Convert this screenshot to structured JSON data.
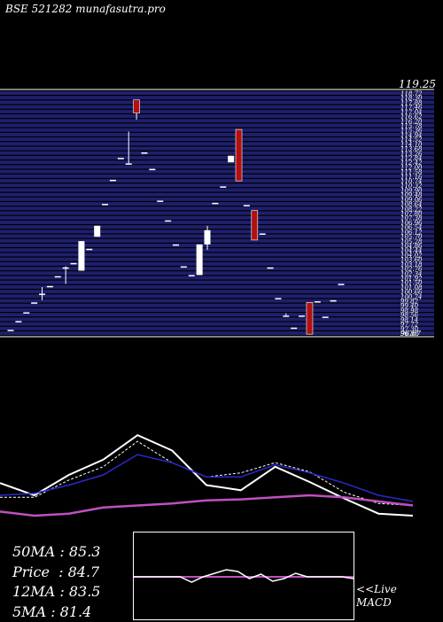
{
  "header": {
    "title": "BSE 521282 munafasutra.pro"
  },
  "price_axis": {
    "top_label": "119.25",
    "tick_labels": [
      "118.72",
      "118.30",
      "117.88",
      "117.46",
      "117.04",
      "116.62",
      "116.20",
      "115.78",
      "115.36",
      "114.94",
      "114.52",
      "114.10",
      "113.68",
      "113.26",
      "112.84",
      "112.42",
      "112.00",
      "111.58",
      "111.16",
      "110.74",
      "110.32",
      "109.90",
      "109.48",
      "109.06",
      "108.64",
      "108.22",
      "107.80",
      "107.38",
      "106.96",
      "106.54",
      "106.12",
      "105.70",
      "105.28",
      "104.86",
      "104.44",
      "104.02",
      "103.60",
      "103.18",
      "102.76",
      "102.34",
      "101.92",
      "101.50",
      "101.08",
      "100.66",
      "100.24",
      "99.82",
      "99.40",
      "98.98",
      "98.56",
      "98.14",
      "97.72",
      "97.30",
      "96.88"
    ],
    "bottom_label": "96.67"
  },
  "stats": {
    "ma50": "50MA : 85.3",
    "price": "Price  : 84.7",
    "ma12": "12MA : 83.5",
    "ma5": "5MA : 81.4"
  },
  "macd_label": {
    "line1": "<<Live",
    "line2": "MACD"
  },
  "colors": {
    "band": "#1f1f6e",
    "up": "#ffffff",
    "down": "#b01010",
    "ma_short": "#ffffff",
    "ma_mid": "#2a2acc",
    "ma_long": "#c050c0"
  },
  "chart_data": [
    {
      "type": "candlestick",
      "title": "BSE 521282",
      "ylim": [
        96.67,
        119.25
      ],
      "candles": [
        {
          "o": 97.3,
          "h": 97.3,
          "l": 97.3,
          "c": 97.3
        },
        {
          "o": 98.1,
          "h": 98.1,
          "l": 98.1,
          "c": 98.1
        },
        {
          "o": 98.9,
          "h": 98.9,
          "l": 98.9,
          "c": 98.9
        },
        {
          "o": 99.8,
          "h": 99.8,
          "l": 99.8,
          "c": 99.8
        },
        {
          "o": 100.6,
          "h": 101.2,
          "l": 100.0,
          "c": 100.6
        },
        {
          "o": 101.3,
          "h": 101.3,
          "l": 101.3,
          "c": 101.3
        },
        {
          "o": 102.2,
          "h": 102.2,
          "l": 102.2,
          "c": 102.2
        },
        {
          "o": 103.0,
          "h": 103.1,
          "l": 101.5,
          "c": 103.0
        },
        {
          "o": 103.4,
          "h": 103.4,
          "l": 103.4,
          "c": 103.4
        },
        {
          "o": 102.7,
          "h": 105.4,
          "l": 102.7,
          "c": 105.4
        },
        {
          "o": 104.7,
          "h": 104.7,
          "l": 104.7,
          "c": 104.7
        },
        {
          "o": 105.8,
          "h": 106.8,
          "l": 105.8,
          "c": 106.8
        },
        {
          "o": 108.8,
          "h": 108.8,
          "l": 108.8,
          "c": 108.8
        },
        {
          "o": 111.0,
          "h": 111.0,
          "l": 111.0,
          "c": 111.0
        },
        {
          "o": 113.0,
          "h": 113.0,
          "l": 113.0,
          "c": 113.0
        },
        {
          "o": 112.5,
          "h": 115.4,
          "l": 112.5,
          "c": 112.5
        },
        {
          "o": 118.3,
          "h": 118.3,
          "l": 116.5,
          "c": 117.1
        },
        {
          "o": 113.5,
          "h": 113.5,
          "l": 113.5,
          "c": 113.5
        },
        {
          "o": 112.0,
          "h": 112.0,
          "l": 112.0,
          "c": 112.0
        },
        {
          "o": 109.1,
          "h": 109.1,
          "l": 109.1,
          "c": 109.1
        },
        {
          "o": 107.3,
          "h": 107.3,
          "l": 107.3,
          "c": 107.3
        },
        {
          "o": 105.1,
          "h": 105.1,
          "l": 105.1,
          "c": 105.1
        },
        {
          "o": 103.1,
          "h": 103.1,
          "l": 103.1,
          "c": 103.1
        },
        {
          "o": 102.3,
          "h": 102.3,
          "l": 102.3,
          "c": 102.3
        },
        {
          "o": 102.3,
          "h": 105.1,
          "l": 102.3,
          "c": 105.1
        },
        {
          "o": 105.1,
          "h": 106.8,
          "l": 104.6,
          "c": 106.4
        },
        {
          "o": 108.9,
          "h": 108.9,
          "l": 108.9,
          "c": 108.9
        },
        {
          "o": 110.4,
          "h": 110.4,
          "l": 110.4,
          "c": 110.4
        },
        {
          "o": 112.6,
          "h": 113.2,
          "l": 112.6,
          "c": 113.2
        },
        {
          "o": 115.6,
          "h": 115.6,
          "l": 110.9,
          "c": 110.9
        },
        {
          "o": 108.7,
          "h": 108.7,
          "l": 108.7,
          "c": 108.7
        },
        {
          "o": 108.2,
          "h": 108.2,
          "l": 105.5,
          "c": 105.5
        },
        {
          "o": 106.1,
          "h": 106.1,
          "l": 106.1,
          "c": 106.1
        },
        {
          "o": 103.0,
          "h": 103.0,
          "l": 103.0,
          "c": 103.0
        },
        {
          "o": 100.2,
          "h": 100.2,
          "l": 100.2,
          "c": 100.2
        },
        {
          "o": 98.6,
          "h": 98.8,
          "l": 98.6,
          "c": 98.6
        },
        {
          "o": 97.5,
          "h": 97.5,
          "l": 97.5,
          "c": 97.5
        },
        {
          "o": 98.6,
          "h": 98.6,
          "l": 98.6,
          "c": 98.6
        },
        {
          "o": 99.8,
          "h": 99.8,
          "l": 96.9,
          "c": 96.9
        },
        {
          "o": 99.9,
          "h": 99.9,
          "l": 99.9,
          "c": 99.9
        },
        {
          "o": 98.5,
          "h": 98.5,
          "l": 98.5,
          "c": 98.5
        },
        {
          "o": 100.0,
          "h": 100.0,
          "l": 100.0,
          "c": 100.0
        },
        {
          "o": 101.5,
          "h": 101.5,
          "l": 101.5,
          "c": 101.5
        }
      ]
    },
    {
      "type": "line",
      "title": "Moving averages",
      "ylim": [
        0,
        100
      ],
      "series": [
        {
          "values": [
            52,
            40,
            60,
            75,
            99,
            84,
            50,
            45,
            68,
            53,
            37,
            22,
            20
          ]
        },
        {
          "values": [
            38,
            38,
            55,
            68,
            93,
            72,
            58,
            62,
            72,
            63,
            43,
            32,
            30
          ]
        },
        {
          "values": [
            40,
            42,
            50,
            60,
            80,
            72,
            58,
            58,
            70,
            62,
            52,
            40,
            34
          ]
        },
        {
          "values": [
            24,
            20,
            22,
            28,
            30,
            32,
            35,
            36,
            38,
            40,
            38,
            34,
            30
          ]
        }
      ]
    },
    {
      "type": "line",
      "title": "MACD",
      "ylim": [
        -1,
        1
      ],
      "series": [
        {
          "values": [
            0,
            0,
            0,
            0,
            0,
            -0.3,
            0,
            0.2,
            0.4,
            0.3,
            -0.1,
            0.15,
            -0.25,
            -0.1,
            0.2,
            0,
            0,
            0,
            0,
            -0.1
          ]
        }
      ]
    }
  ]
}
